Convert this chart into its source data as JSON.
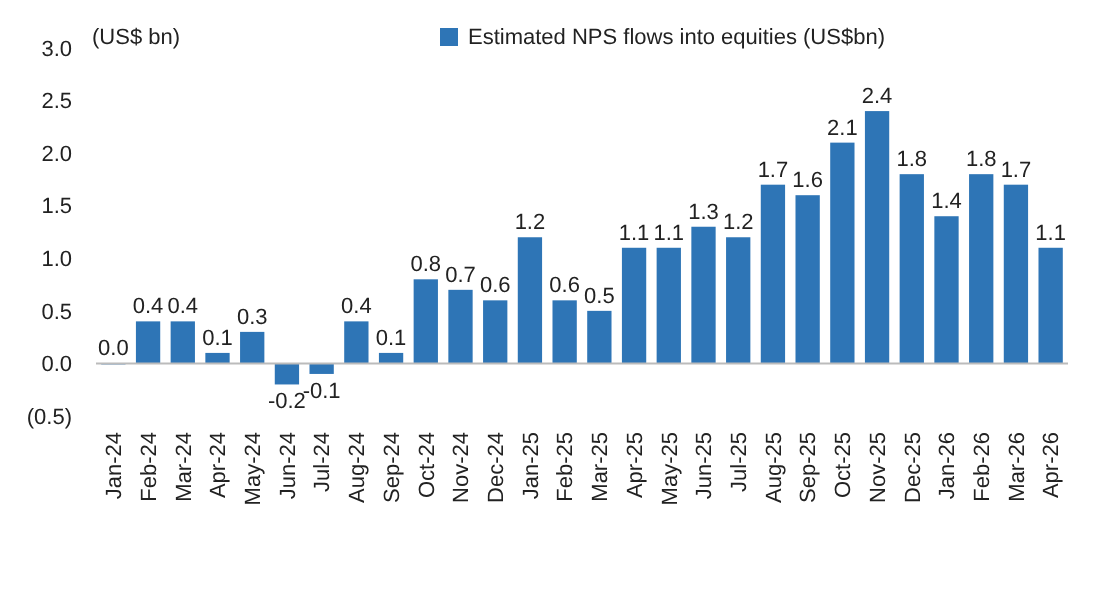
{
  "chart_data": {
    "type": "bar",
    "ylabel": "(US$ bn)",
    "categories": [
      "Jan-24",
      "Feb-24",
      "Mar-24",
      "Apr-24",
      "May-24",
      "Jun-24",
      "Jul-24",
      "Aug-24",
      "Sep-24",
      "Oct-24",
      "Nov-24",
      "Dec-24",
      "Jan-25",
      "Feb-25",
      "Mar-25",
      "Apr-25",
      "May-25",
      "Jun-25",
      "Jul-25",
      "Aug-25",
      "Sep-25",
      "Oct-25",
      "Nov-25",
      "Dec-25",
      "Jan-26",
      "Feb-26",
      "Mar-26",
      "Apr-26"
    ],
    "series": [
      {
        "name": "Estimated NPS flows into equities (US$bn)",
        "color": "#2e75b6",
        "values": [
          0.0,
          0.4,
          0.4,
          0.1,
          0.3,
          -0.2,
          -0.1,
          0.4,
          0.1,
          0.8,
          0.7,
          0.6,
          1.2,
          0.6,
          0.5,
          1.1,
          1.1,
          1.3,
          1.2,
          1.7,
          1.6,
          2.1,
          2.4,
          1.8,
          1.4,
          1.8,
          1.7,
          1.1
        ]
      }
    ],
    "ylim": [
      -0.5,
      3.0
    ],
    "yticks": [
      {
        "value": -0.5,
        "label": "(0.5)"
      },
      {
        "value": 0,
        "label": "0.0"
      },
      {
        "value": 0.5,
        "label": "0.5"
      },
      {
        "value": 1,
        "label": "1.0"
      },
      {
        "value": 1.5,
        "label": "1.5"
      },
      {
        "value": 2,
        "label": "2.0"
      },
      {
        "value": 2.5,
        "label": "2.5"
      },
      {
        "value": 3,
        "label": "3.0"
      }
    ],
    "value_labels": [
      "0.0",
      "0.4",
      "0.4",
      "0.1",
      "0.3",
      "-0.2",
      "-0.1",
      "0.4",
      "0.1",
      "0.8",
      "0.7",
      "0.6",
      "1.2",
      "0.6",
      "0.5",
      "1.1",
      "1.1",
      "1.3",
      "1.2",
      "1.7",
      "1.6",
      "2.1",
      "2.4",
      "1.8",
      "1.4",
      "1.8",
      "1.7",
      "1.1"
    ],
    "legend": "top"
  }
}
